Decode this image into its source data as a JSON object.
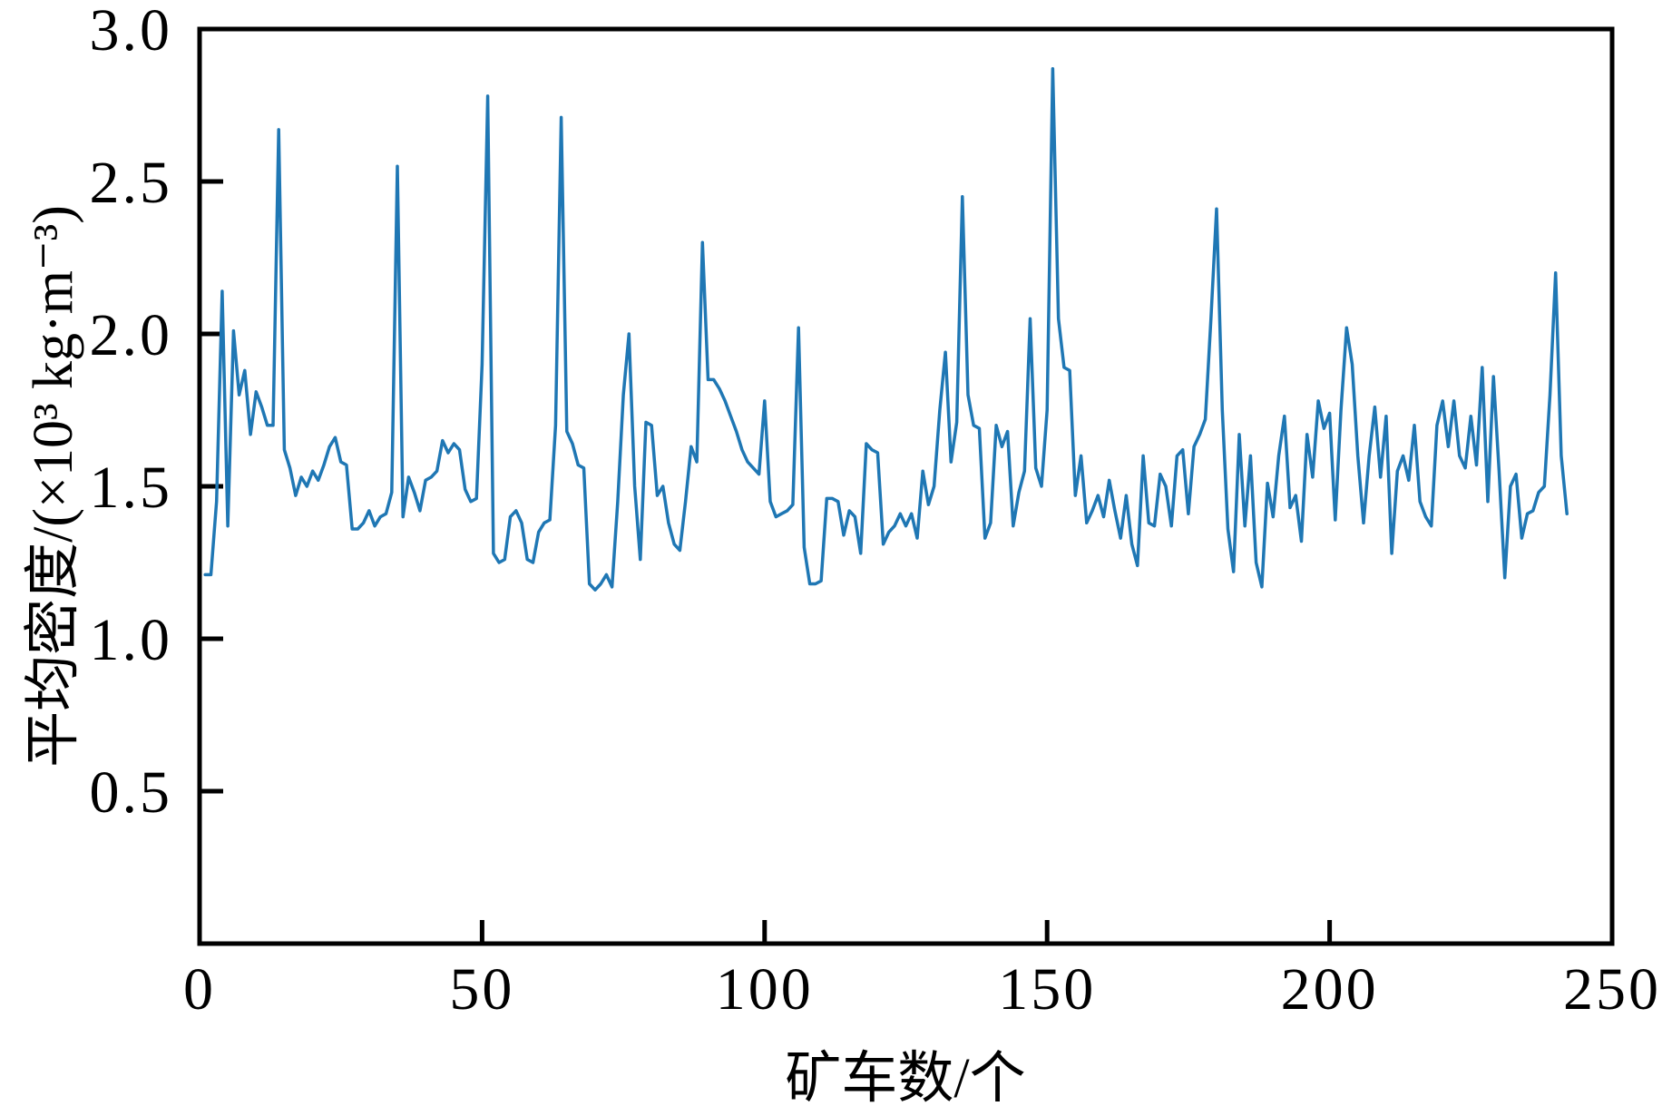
{
  "figure": {
    "background_color": "#ffffff",
    "axis_color": "#000000"
  },
  "chart_data": {
    "type": "line",
    "title": "",
    "xlabel": "矿车数/个",
    "ylabel": "平均密度/(×10³ kg·m⁻³)",
    "xlim": [
      0,
      250
    ],
    "ylim": [
      0,
      3.0
    ],
    "xticks": [
      0,
      50,
      100,
      150,
      200,
      250
    ],
    "xtick_labels": [
      "0",
      "50",
      "100",
      "150",
      "200",
      "250"
    ],
    "yticks": [
      0.5,
      1.0,
      1.5,
      2.0,
      2.5,
      3.0
    ],
    "ytick_labels": [
      "0.5",
      "1.0",
      "1.5",
      "2.0",
      "2.5",
      "3.0"
    ],
    "grid": false,
    "legend_position": "none",
    "line_color": "#1f77b4",
    "series": [
      {
        "name": "平均密度",
        "x_start": 1,
        "x_step": 1,
        "y": [
          1.21,
          1.21,
          1.45,
          2.14,
          1.37,
          2.01,
          1.8,
          1.88,
          1.67,
          1.81,
          1.76,
          1.7,
          1.7,
          2.67,
          1.62,
          1.56,
          1.47,
          1.53,
          1.5,
          1.55,
          1.52,
          1.57,
          1.63,
          1.66,
          1.58,
          1.57,
          1.36,
          1.36,
          1.38,
          1.42,
          1.37,
          1.4,
          1.41,
          1.48,
          2.55,
          1.4,
          1.53,
          1.48,
          1.42,
          1.52,
          1.53,
          1.55,
          1.65,
          1.61,
          1.64,
          1.62,
          1.49,
          1.45,
          1.46,
          1.9,
          2.78,
          1.28,
          1.25,
          1.26,
          1.4,
          1.42,
          1.38,
          1.26,
          1.25,
          1.35,
          1.38,
          1.39,
          1.7,
          2.71,
          1.68,
          1.64,
          1.57,
          1.56,
          1.18,
          1.16,
          1.18,
          1.21,
          1.17,
          1.45,
          1.8,
          2.0,
          1.5,
          1.26,
          1.71,
          1.7,
          1.47,
          1.5,
          1.38,
          1.31,
          1.29,
          1.45,
          1.63,
          1.58,
          2.3,
          1.85,
          1.85,
          1.82,
          1.78,
          1.73,
          1.68,
          1.62,
          1.58,
          1.56,
          1.54,
          1.78,
          1.45,
          1.4,
          1.41,
          1.42,
          1.44,
          2.02,
          1.3,
          1.18,
          1.18,
          1.19,
          1.46,
          1.46,
          1.45,
          1.34,
          1.42,
          1.4,
          1.28,
          1.64,
          1.62,
          1.61,
          1.31,
          1.35,
          1.37,
          1.41,
          1.37,
          1.41,
          1.33,
          1.55,
          1.44,
          1.5,
          1.75,
          1.94,
          1.58,
          1.71,
          2.45,
          1.8,
          1.7,
          1.69,
          1.33,
          1.38,
          1.7,
          1.63,
          1.68,
          1.37,
          1.48,
          1.55,
          2.05,
          1.56,
          1.5,
          1.75,
          2.87,
          2.05,
          1.89,
          1.88,
          1.47,
          1.6,
          1.38,
          1.42,
          1.47,
          1.4,
          1.52,
          1.42,
          1.33,
          1.47,
          1.31,
          1.24,
          1.6,
          1.38,
          1.37,
          1.54,
          1.5,
          1.37,
          1.6,
          1.62,
          1.41,
          1.63,
          1.67,
          1.72,
          2.05,
          2.41,
          1.75,
          1.36,
          1.22,
          1.67,
          1.37,
          1.6,
          1.25,
          1.17,
          1.51,
          1.4,
          1.6,
          1.73,
          1.43,
          1.47,
          1.32,
          1.67,
          1.53,
          1.78,
          1.69,
          1.74,
          1.39,
          1.75,
          2.02,
          1.9,
          1.6,
          1.38,
          1.6,
          1.76,
          1.53,
          1.73,
          1.28,
          1.55,
          1.6,
          1.52,
          1.7,
          1.45,
          1.4,
          1.37,
          1.7,
          1.78,
          1.63,
          1.78,
          1.6,
          1.56,
          1.73,
          1.57,
          1.89,
          1.45,
          1.86,
          1.55,
          1.2,
          1.5,
          1.54,
          1.33,
          1.41,
          1.42,
          1.48,
          1.5,
          1.8,
          2.2,
          1.6,
          1.41
        ]
      }
    ]
  }
}
